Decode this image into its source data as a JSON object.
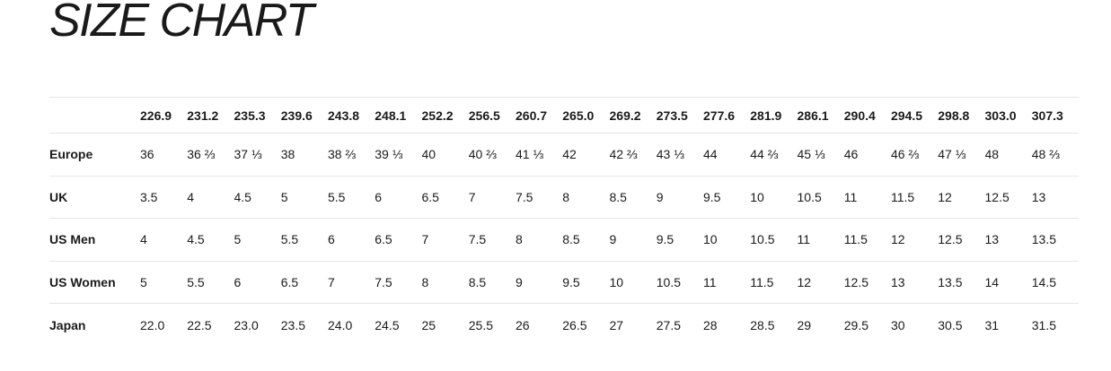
{
  "page_title": "SIZE CHART",
  "colors": {
    "background": "#ffffff",
    "text": "#1a1a1a",
    "divider": "#e5e5e5"
  },
  "chart_data": {
    "type": "table",
    "title": "SIZE CHART",
    "columns": [
      "226.9",
      "231.2",
      "235.3",
      "239.6",
      "243.8",
      "248.1",
      "252.2",
      "256.5",
      "260.7",
      "265.0",
      "269.2",
      "273.5",
      "277.6",
      "281.9",
      "286.1",
      "290.4",
      "294.5",
      "298.8",
      "303.0",
      "307.3"
    ],
    "rows": [
      {
        "label": "Europe",
        "values": [
          "36",
          "36 ⅔",
          "37 ⅓",
          "38",
          "38 ⅔",
          "39 ⅓",
          "40",
          "40 ⅔",
          "41 ⅓",
          "42",
          "42 ⅔",
          "43 ⅓",
          "44",
          "44 ⅔",
          "45 ⅓",
          "46",
          "46 ⅔",
          "47 ⅓",
          "48",
          "48 ⅔"
        ]
      },
      {
        "label": "UK",
        "values": [
          "3.5",
          "4",
          "4.5",
          "5",
          "5.5",
          "6",
          "6.5",
          "7",
          "7.5",
          "8",
          "8.5",
          "9",
          "9.5",
          "10",
          "10.5",
          "11",
          "11.5",
          "12",
          "12.5",
          "13"
        ]
      },
      {
        "label": "US Men",
        "values": [
          "4",
          "4.5",
          "5",
          "5.5",
          "6",
          "6.5",
          "7",
          "7.5",
          "8",
          "8.5",
          "9",
          "9.5",
          "10",
          "10.5",
          "11",
          "11.5",
          "12",
          "12.5",
          "13",
          "13.5"
        ]
      },
      {
        "label": "US Women",
        "values": [
          "5",
          "5.5",
          "6",
          "6.5",
          "7",
          "7.5",
          "8",
          "8.5",
          "9",
          "9.5",
          "10",
          "10.5",
          "11",
          "11.5",
          "12",
          "12.5",
          "13",
          "13.5",
          "14",
          "14.5"
        ]
      },
      {
        "label": "Japan",
        "values": [
          "22.0",
          "22.5",
          "23.0",
          "23.5",
          "24.0",
          "24.5",
          "25",
          "25.5",
          "26",
          "26.5",
          "27",
          "27.5",
          "28",
          "28.5",
          "29",
          "29.5",
          "30",
          "30.5",
          "31",
          "31.5"
        ]
      }
    ]
  }
}
